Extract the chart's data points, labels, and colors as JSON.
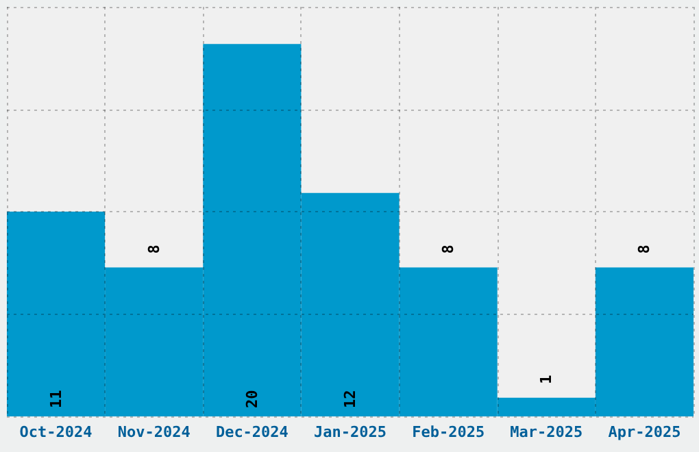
{
  "chart_data": {
    "type": "bar",
    "categories": [
      "Oct-2024",
      "Nov-2024",
      "Dec-2024",
      "Jan-2025",
      "Feb-2025",
      "Mar-2025",
      "Apr-2025"
    ],
    "values": [
      11,
      8,
      20,
      12,
      8,
      1,
      8
    ],
    "color": "#0099cc",
    "ylim": [
      0,
      22
    ],
    "yticks": [
      {
        "value": 0,
        "label": null
      },
      {
        "value": 5.5,
        "label": null
      },
      {
        "value": 11,
        "label": null
      },
      {
        "value": 16.5,
        "label": null
      },
      {
        "value": 22,
        "label": null
      }
    ],
    "grid": true,
    "tick_labels": "x",
    "data_labels": true
  }
}
